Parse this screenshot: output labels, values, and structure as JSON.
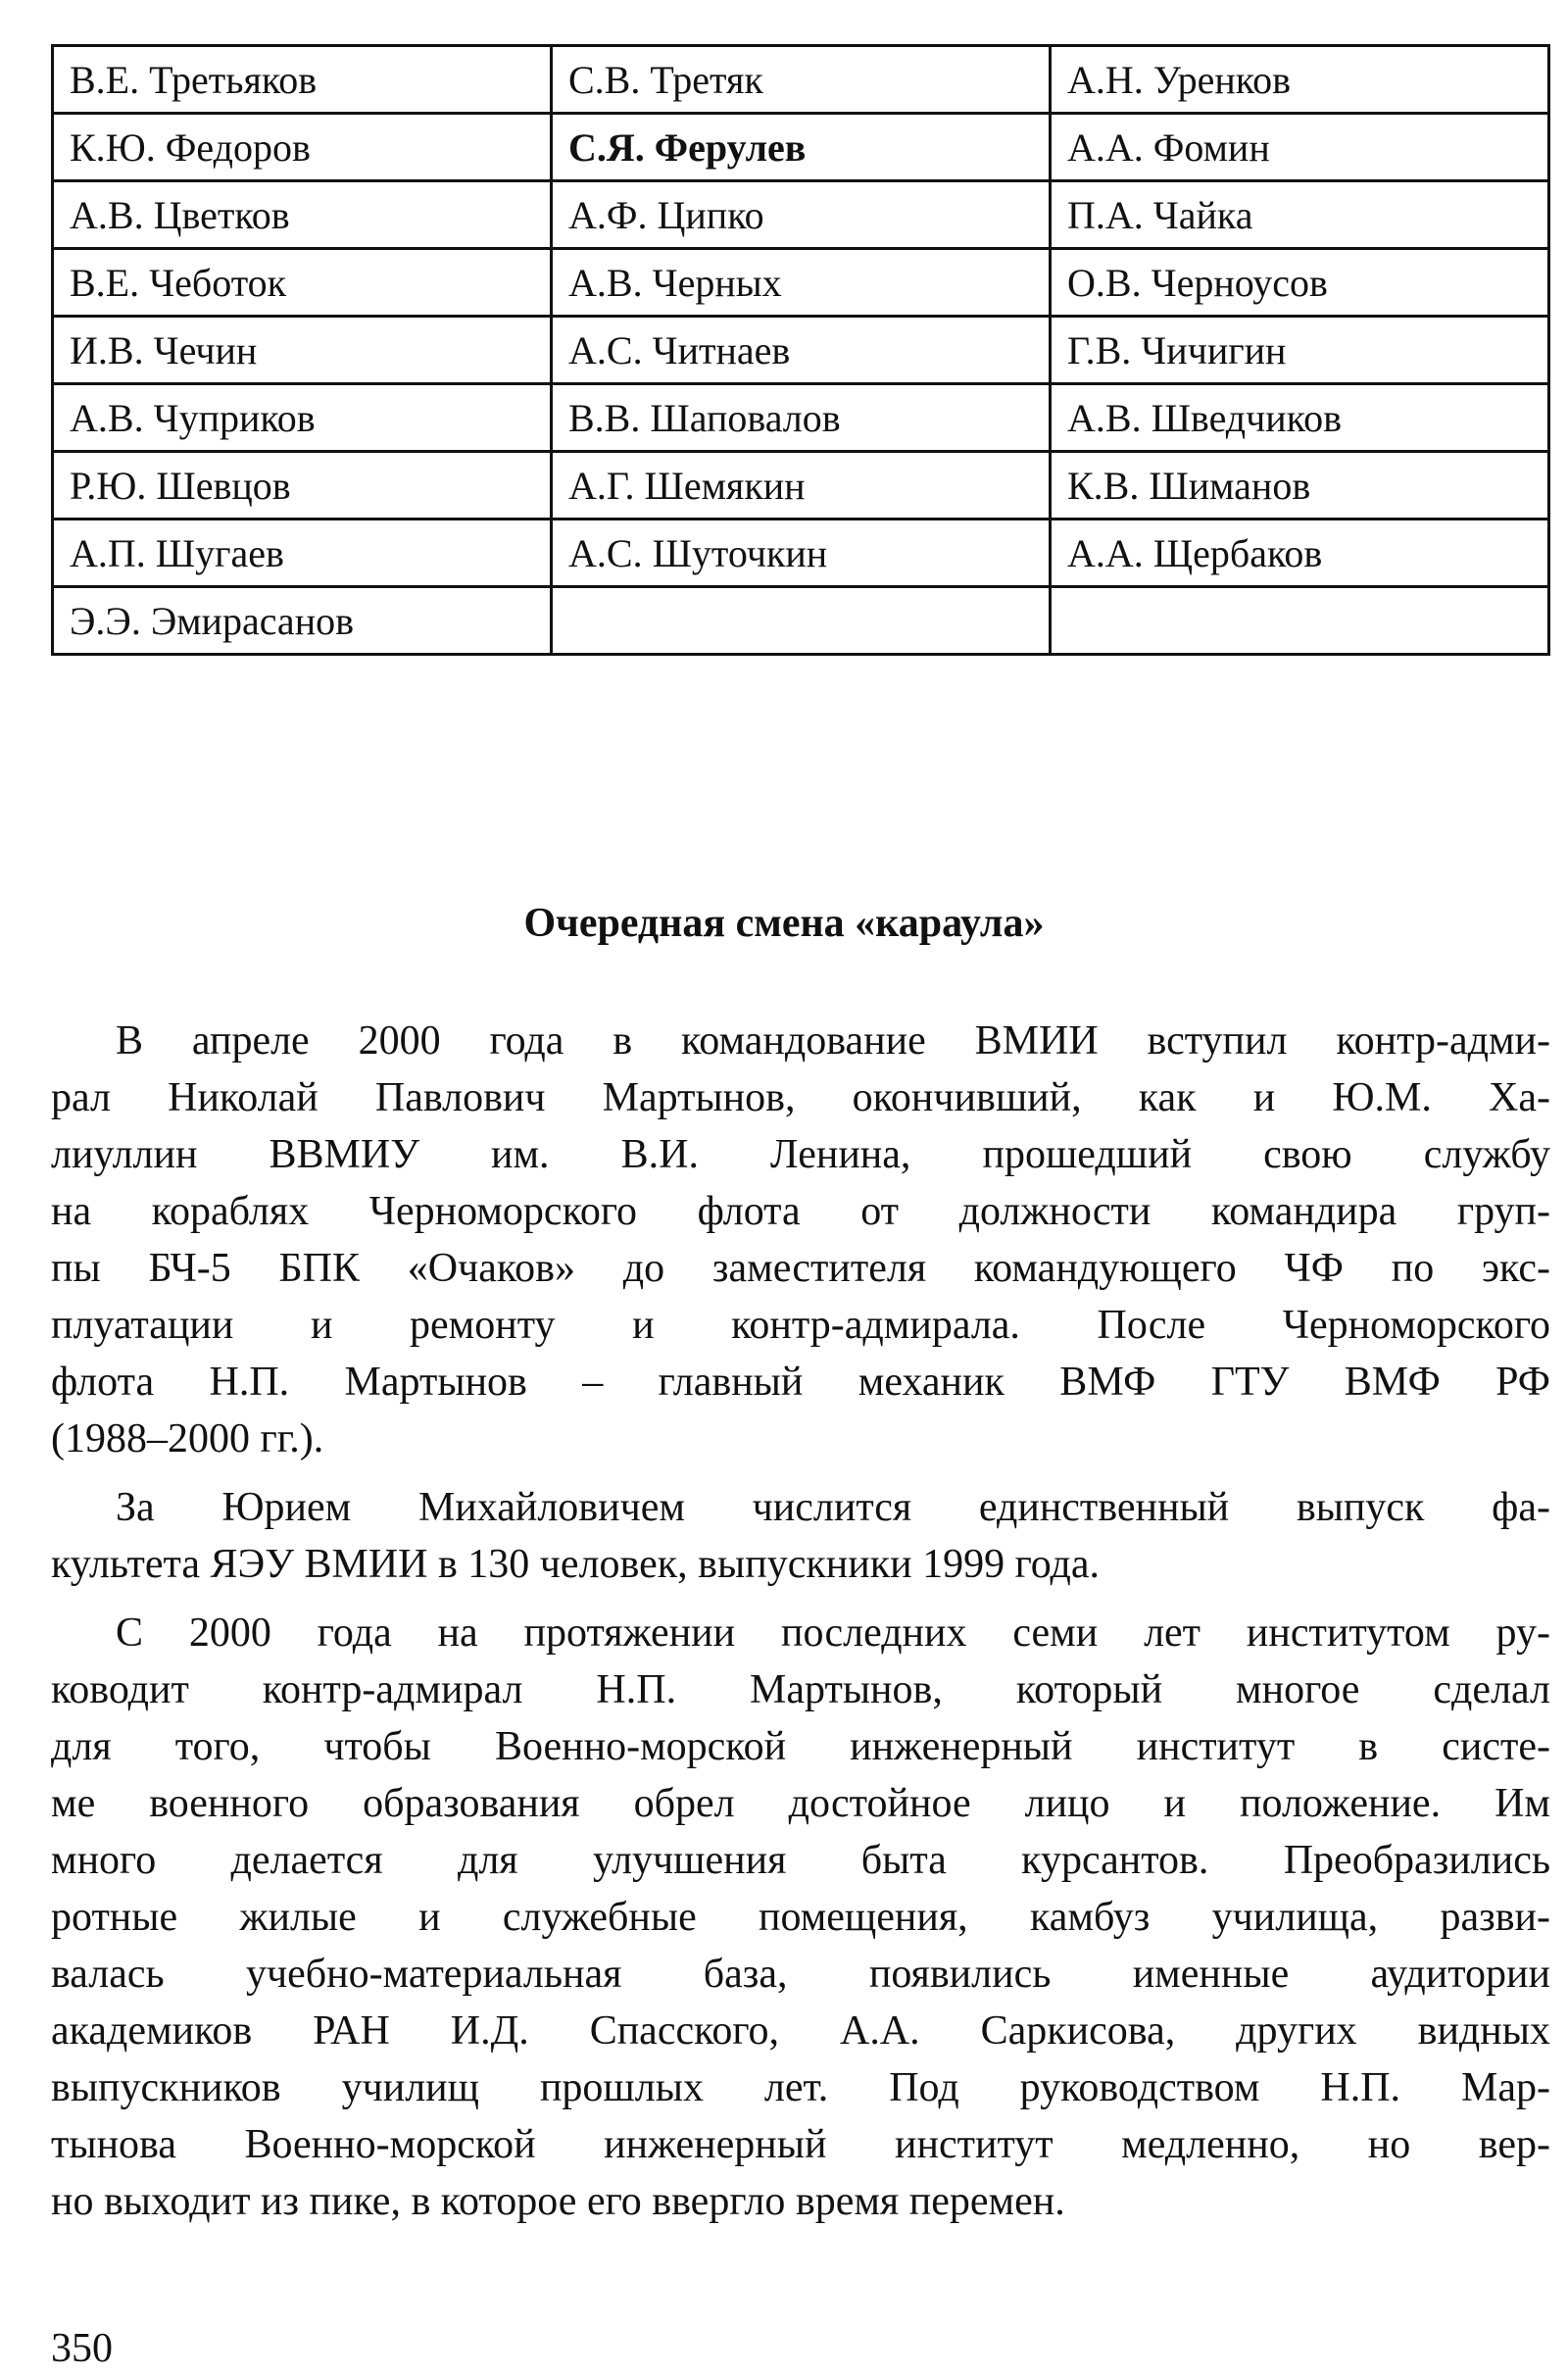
{
  "table": {
    "rows": [
      [
        "В.Е. Третьяков",
        "С.В. Третяк",
        "А.Н. Уренков"
      ],
      [
        "К.Ю. Федоров",
        "С.Я. Ферулев",
        "А.А. Фомин"
      ],
      [
        "А.В. Цветков",
        "А.Ф. Ципко",
        "П.А. Чайка"
      ],
      [
        "В.Е. Чеботок",
        "А.В. Черных",
        "О.В. Черноусов"
      ],
      [
        "И.В. Чечин",
        "А.С. Читнаев",
        "Г.В. Чичигин"
      ],
      [
        "А.В. Чуприков",
        "В.В. Шаповалов",
        "А.В. Шведчиков"
      ],
      [
        "Р.Ю. Шевцов",
        "А.Г. Шемякин",
        "К.В. Шиманов"
      ],
      [
        "А.П. Шугаев",
        "А.С. Шуточкин",
        "А.А. Щербаков"
      ],
      [
        "Э.Э. Эмирасанов",
        "",
        ""
      ]
    ],
    "bold_cell": "С.Я. Ферулев"
  },
  "section": {
    "heading": "Очередная смена «караула»",
    "paragraphs": [
      [
        "В апреле 2000 года в командование ВМИИ вступил контр-адми-",
        "рал Николай Павлович Мартынов, окончивший, как и Ю.М. Ха-",
        "лиуллин ВВМИУ им. В.И. Ленина, прошедший свою службу",
        "на кораблях Черноморского флота от должности командира груп-",
        "пы БЧ-5 БПК «Очаков» до заместителя командующего ЧФ по экс-",
        "плуатации и ремонту и контр-адмирала. После Черноморского",
        "флота Н.П. Мартынов – главный механик ВМФ ГТУ ВМФ РФ",
        "(1988–2000 гг.)."
      ],
      [
        "За Юрием Михайловичем числится единственный выпуск фа-",
        "культета ЯЭУ ВМИИ в 130 человек, выпускники 1999 года."
      ],
      [
        "С 2000 года на протяжении последних семи лет институтом ру-",
        "ководит контр-адмирал Н.П. Мартынов, который многое сделал",
        "для того, чтобы Военно-морской инженерный институт в систе-",
        "ме военного образования обрел достойное лицо и положение. Им",
        "много делается для улучшения быта курсантов. Преобразились",
        "ротные жилые и служебные помещения, камбуз училища, разви-",
        "валась учебно-материальная база, появились именные аудитории",
        "академиков РАН И.Д. Спасского, А.А. Саркисова, других видных",
        "выпускников училищ прошлых лет. Под руководством Н.П. Мар-",
        "тынова Военно-морской инженерный институт медленно, но вер-",
        "но выходит из пике, в которое его ввергло время перемен."
      ]
    ]
  },
  "page_number": "350"
}
